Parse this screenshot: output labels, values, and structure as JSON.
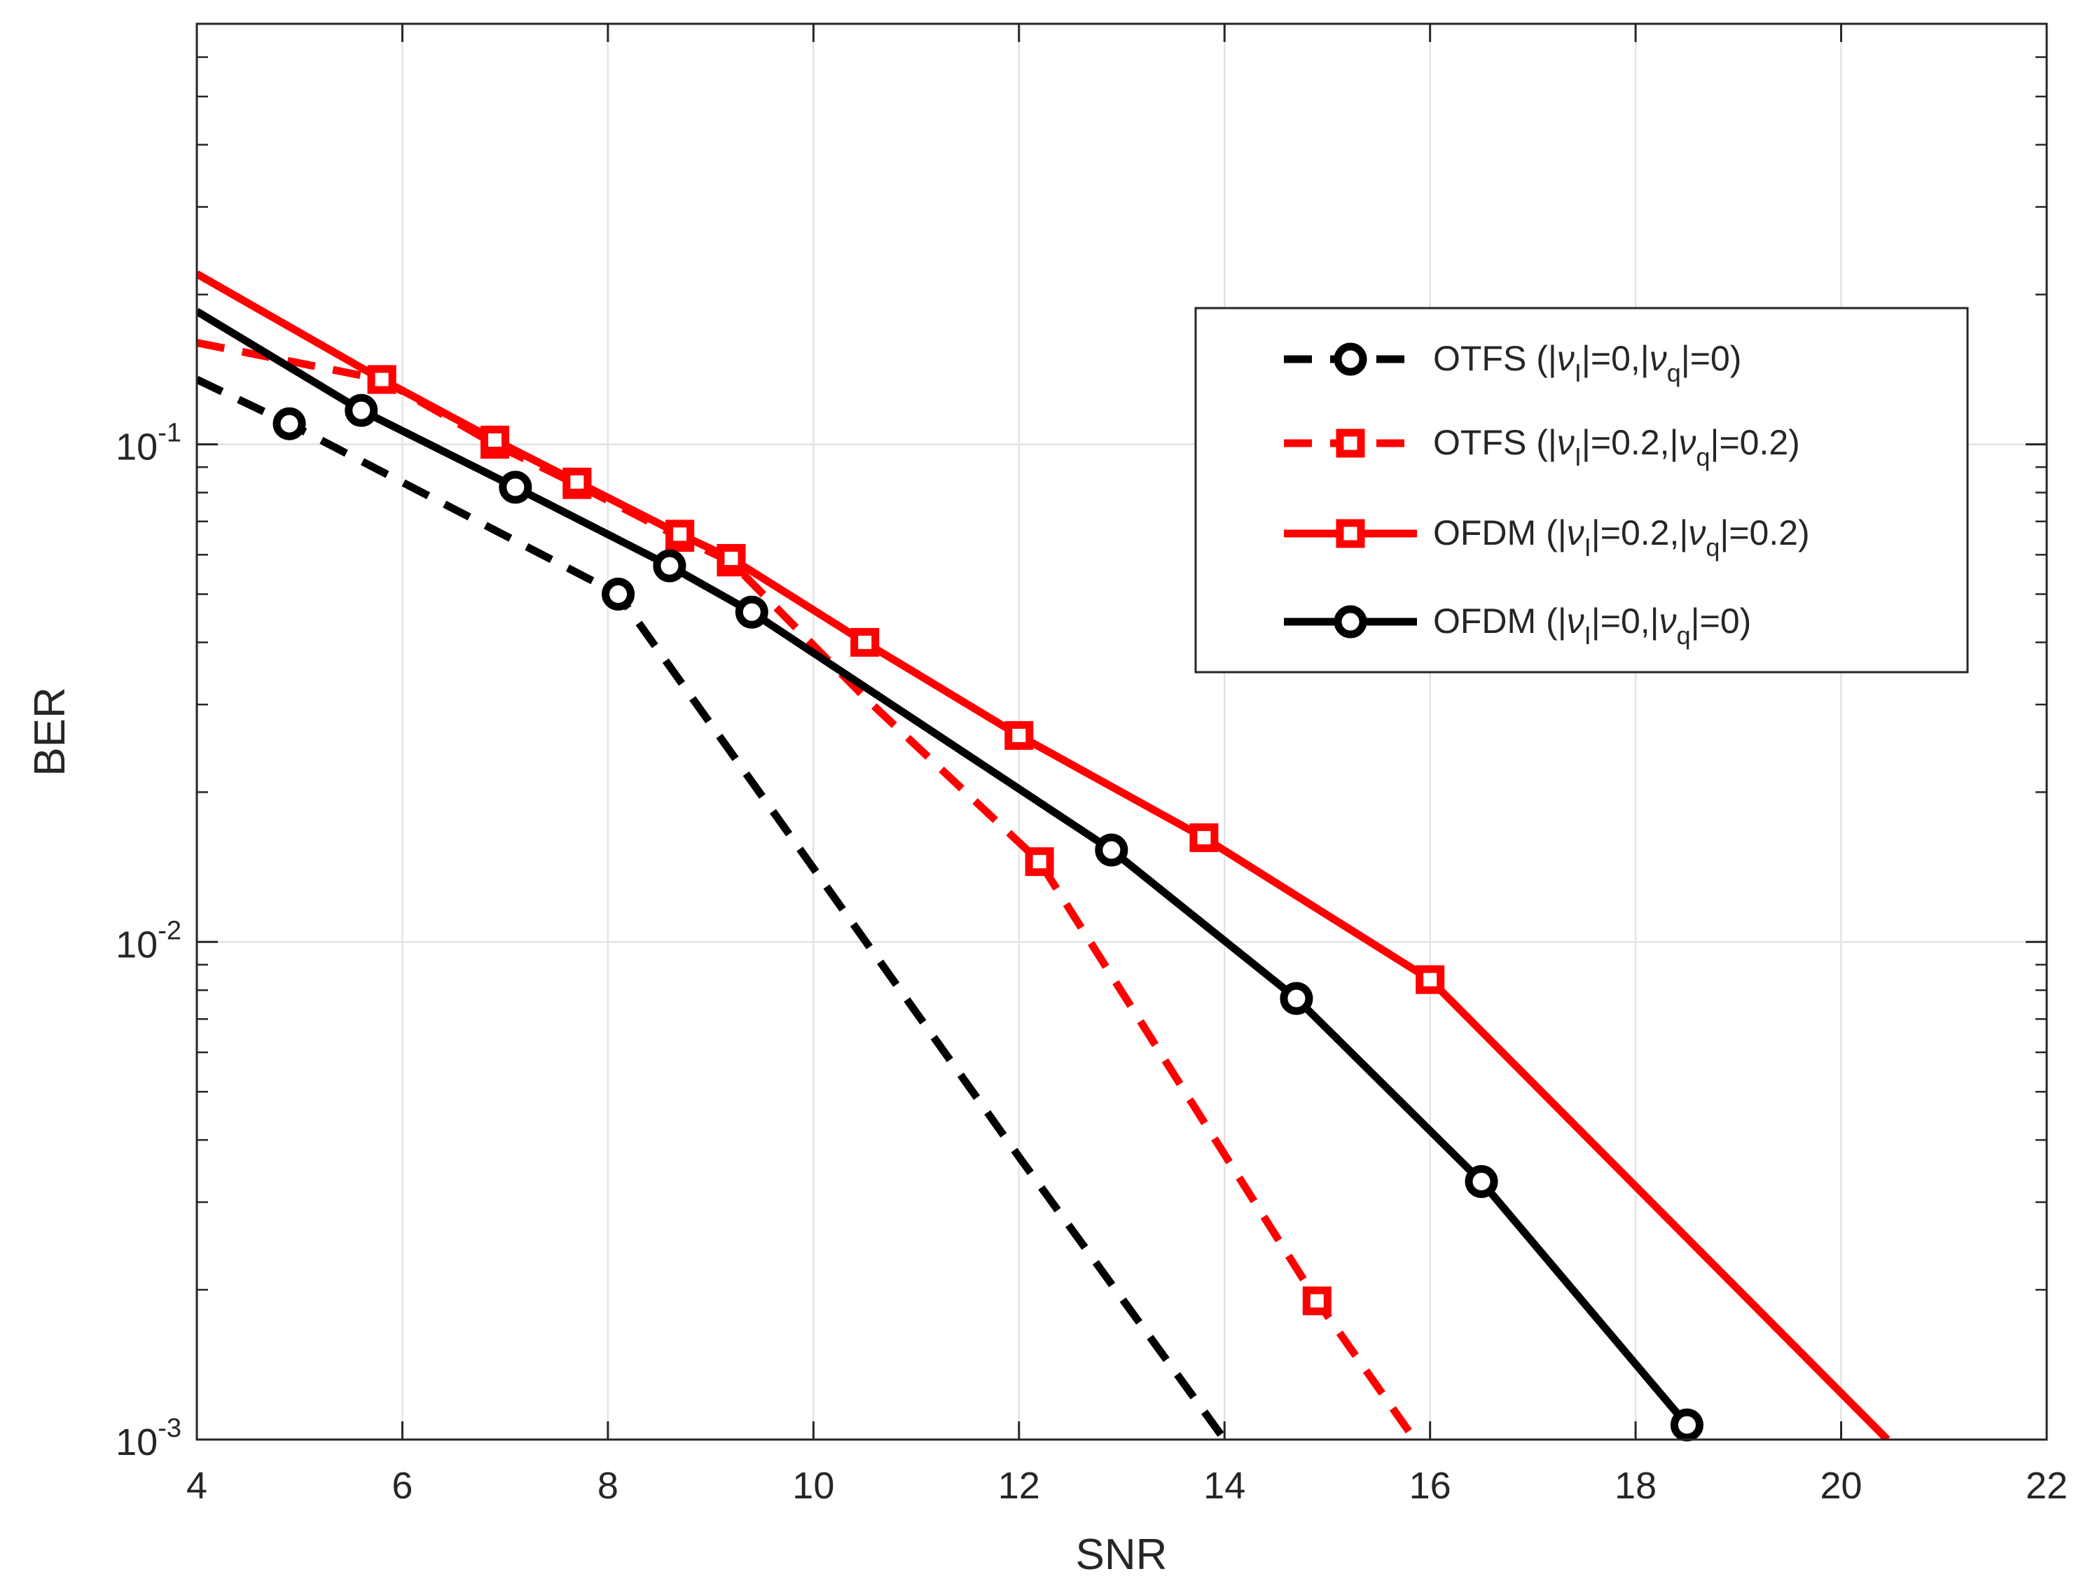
{
  "chart_data": {
    "type": "line",
    "title": "",
    "xlabel": "SNR",
    "ylabel": "BER",
    "xlim": [
      4,
      22
    ],
    "ylim": [
      0.001,
      0.7
    ],
    "yscale": "log",
    "grid": true,
    "legend_position": "top-right",
    "x_ticks": [
      4,
      6,
      8,
      10,
      12,
      14,
      16,
      18,
      20,
      22
    ],
    "x_tick_labels": [
      "4",
      "6",
      "8",
      "10",
      "12",
      "14",
      "16",
      "18",
      "20",
      "22"
    ],
    "y_ticks": [
      0.001,
      0.01,
      0.1
    ],
    "y_tick_labels": [
      {
        "base": "10",
        "exp": "-3"
      },
      {
        "base": "10",
        "exp": "-2"
      },
      {
        "base": "10",
        "exp": "-1"
      }
    ],
    "series": [
      {
        "name": "OTFS (|ν_I|=0,|ν_q|=0)",
        "legend": {
          "prefix": "OTFS (|",
          "sub1": "I",
          "mid": "|=0,|",
          "sub2": "q",
          "suffix": "|=0)"
        },
        "color": "#000000",
        "dash": true,
        "marker": "circle",
        "x": [
          4.0,
          4.9,
          8.1,
          12.0,
          14.0
        ],
        "y": [
          0.135,
          0.11,
          0.05,
          0.0037,
          0.001
        ],
        "markers_x": [
          4.9,
          8.1
        ],
        "markers_y": [
          0.11,
          0.05
        ]
      },
      {
        "name": "OTFS (|ν_I|=0.2,|ν_q|=0.2)",
        "legend": {
          "prefix": "OTFS (|",
          "sub1": "I",
          "mid": "|=0.2,|",
          "sub2": "q",
          "suffix": "|=0.2)"
        },
        "color": "#ff0000",
        "dash": true,
        "marker": "square",
        "x": [
          4.0,
          5.8,
          6.9,
          7.7,
          8.7,
          9.2,
          10.5,
          12.2,
          14.9,
          15.85
        ],
        "y": [
          0.16,
          0.135,
          0.1,
          0.083,
          0.065,
          0.058,
          0.031,
          0.0145,
          0.0019,
          0.001
        ],
        "markers_x": [
          5.8,
          6.9,
          7.7,
          8.7,
          9.2,
          12.2,
          14.9
        ],
        "markers_y": [
          0.135,
          0.1,
          0.083,
          0.065,
          0.058,
          0.0145,
          0.0019
        ]
      },
      {
        "name": "OFDM (|ν_I|=0.2,|ν_q|=0.2)",
        "legend": {
          "prefix": "OFDM (|",
          "sub1": "I",
          "mid": "|=0.2,|",
          "sub2": "q",
          "suffix": "|=0.2)"
        },
        "color": "#ff0000",
        "dash": false,
        "marker": "square",
        "x": [
          4.0,
          5.8,
          6.9,
          7.7,
          8.7,
          9.2,
          10.5,
          12.0,
          13.8,
          16.0,
          20.45
        ],
        "y": [
          0.22,
          0.135,
          0.102,
          0.084,
          0.066,
          0.059,
          0.04,
          0.026,
          0.0162,
          0.0084,
          0.001
        ],
        "markers_x": [
          5.8,
          6.9,
          7.7,
          8.7,
          9.2,
          10.5,
          12.0,
          13.8,
          16.0
        ],
        "markers_y": [
          0.135,
          0.102,
          0.084,
          0.066,
          0.059,
          0.04,
          0.026,
          0.0162,
          0.0084
        ]
      },
      {
        "name": "OFDM (|ν_I|=0,|ν_q|=0)",
        "legend": {
          "prefix": "OFDM (|",
          "sub1": "I",
          "mid": "|=0,|",
          "sub2": "q",
          "suffix": "|=0)"
        },
        "color": "#000000",
        "dash": false,
        "marker": "circle",
        "x": [
          4.0,
          5.6,
          7.1,
          8.6,
          9.4,
          12.9,
          14.7,
          16.5,
          18.5
        ],
        "y": [
          0.185,
          0.117,
          0.082,
          0.057,
          0.046,
          0.0153,
          0.0077,
          0.0033,
          0.00107
        ],
        "markers_x": [
          5.6,
          7.1,
          8.6,
          9.4,
          12.9,
          14.7,
          16.5,
          18.5
        ],
        "markers_y": [
          0.117,
          0.082,
          0.057,
          0.046,
          0.0153,
          0.0077,
          0.0033,
          0.00107
        ]
      }
    ]
  }
}
